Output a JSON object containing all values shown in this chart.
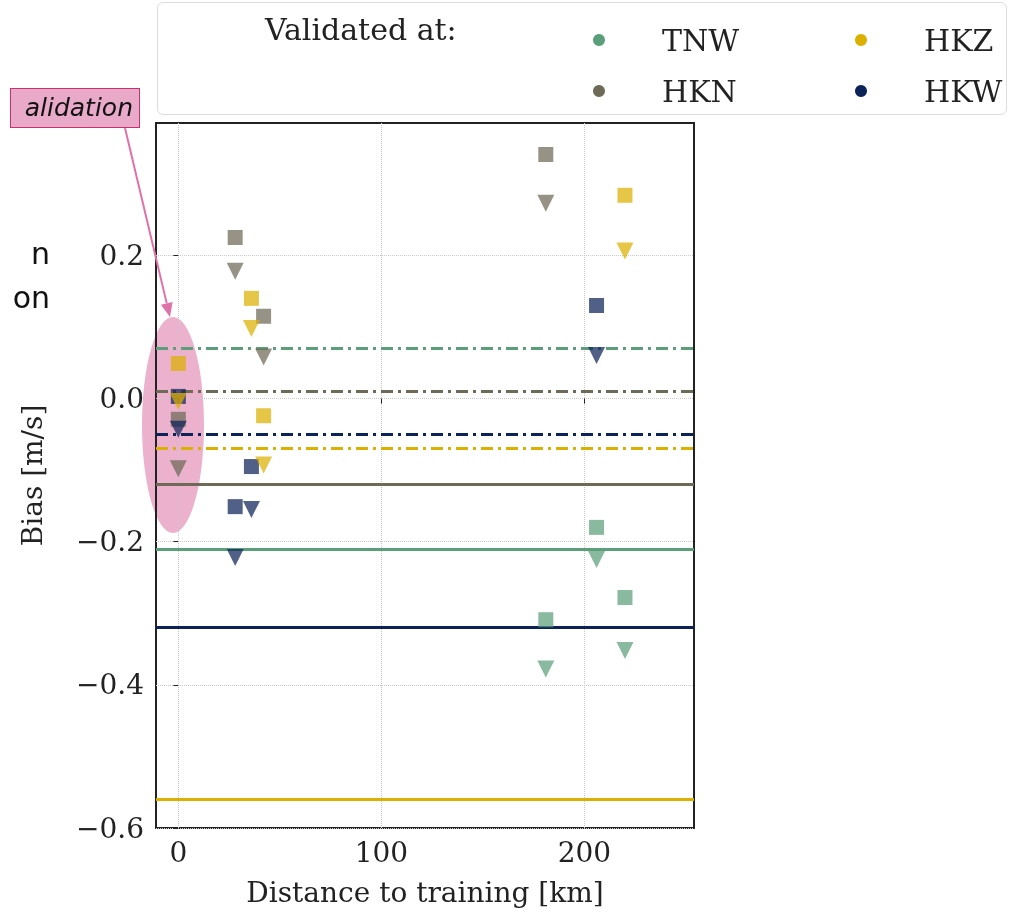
{
  "chart_data": {
    "type": "scatter",
    "xlabel": "Distance to training [km]",
    "ylabel": "Bias [m/s]",
    "legend_title": "Validated at:",
    "xlim": [
      -11,
      254
    ],
    "xticks": [
      0,
      100,
      200
    ],
    "ylim": [
      -0.6,
      0.385
    ],
    "yticks": [
      {
        "value": -0.6,
        "label": "−0.6"
      },
      {
        "value": -0.4,
        "label": "−0.4"
      },
      {
        "value": -0.2,
        "label": "−0.2"
      },
      {
        "value": 0,
        "label": "0.0"
      },
      {
        "value": 0.2,
        "label": "0.2"
      }
    ],
    "grid": true,
    "legend": "top",
    "series": [
      {
        "name": "TNW",
        "color": "#5b9e7a",
        "marker": "square",
        "x": [
          181,
          206,
          220
        ],
        "values": [
          -0.309,
          -0.18,
          -0.278
        ]
      },
      {
        "color": "#5b9e7a",
        "marker": "triangle",
        "x": [
          181,
          206,
          220
        ],
        "values": [
          -0.378,
          -0.225,
          -0.352
        ]
      },
      {
        "name": "HKZ",
        "color": "#dcb000",
        "marker": "square",
        "x": [
          0,
          36,
          42,
          220
        ],
        "values": [
          0.049,
          0.14,
          -0.024,
          0.284
        ]
      },
      {
        "color": "#dcb000",
        "marker": "triangle",
        "x": [
          0,
          36,
          42,
          220
        ],
        "values": [
          -0.004,
          0.098,
          -0.093,
          0.206
        ]
      },
      {
        "name": "HKN",
        "color": "#6e6a58",
        "marker": "square",
        "x": [
          0,
          28,
          42,
          181
        ],
        "values": [
          -0.029,
          0.225,
          0.115,
          0.341
        ]
      },
      {
        "color": "#6e6a58",
        "marker": "triangle",
        "x": [
          0,
          28,
          42,
          181
        ],
        "values": [
          -0.098,
          0.178,
          0.058,
          0.273
        ]
      },
      {
        "name": "HKW",
        "color": "#0c2357",
        "marker": "square",
        "x": [
          0,
          28,
          36,
          206
        ],
        "values": [
          0.003,
          -0.151,
          -0.095,
          0.13
        ]
      },
      {
        "color": "#0c2357",
        "marker": "triangle",
        "x": [
          0,
          28,
          36,
          206
        ],
        "values": [
          -0.043,
          -0.222,
          -0.155,
          0.06
        ]
      }
    ],
    "ref_lines": [
      {
        "axis": "y",
        "value": 0.073,
        "color": "#5b9e7a",
        "line_style": "dashed"
      },
      {
        "axis": "y",
        "value": 0.011,
        "color": "#6e6a58",
        "line_style": "dashed"
      },
      {
        "axis": "y",
        "value": -0.048,
        "color": "#0c2357",
        "line_style": "dashed"
      },
      {
        "axis": "y",
        "value": -0.07,
        "color": "#dcb000",
        "line_style": "dashed"
      },
      {
        "axis": "y",
        "value": -0.123,
        "color": "#6e6a58",
        "line_style": "solid"
      },
      {
        "axis": "y",
        "value": -0.213,
        "color": "#5b9e7a",
        "line_style": "solid"
      },
      {
        "axis": "y",
        "value": -0.322,
        "color": "#0c2357",
        "line_style": "solid"
      },
      {
        "axis": "y",
        "value": -0.56,
        "color": "#dcb000",
        "line_style": "solid"
      }
    ],
    "annotations": [
      "alidation",
      "n\non"
    ]
  }
}
